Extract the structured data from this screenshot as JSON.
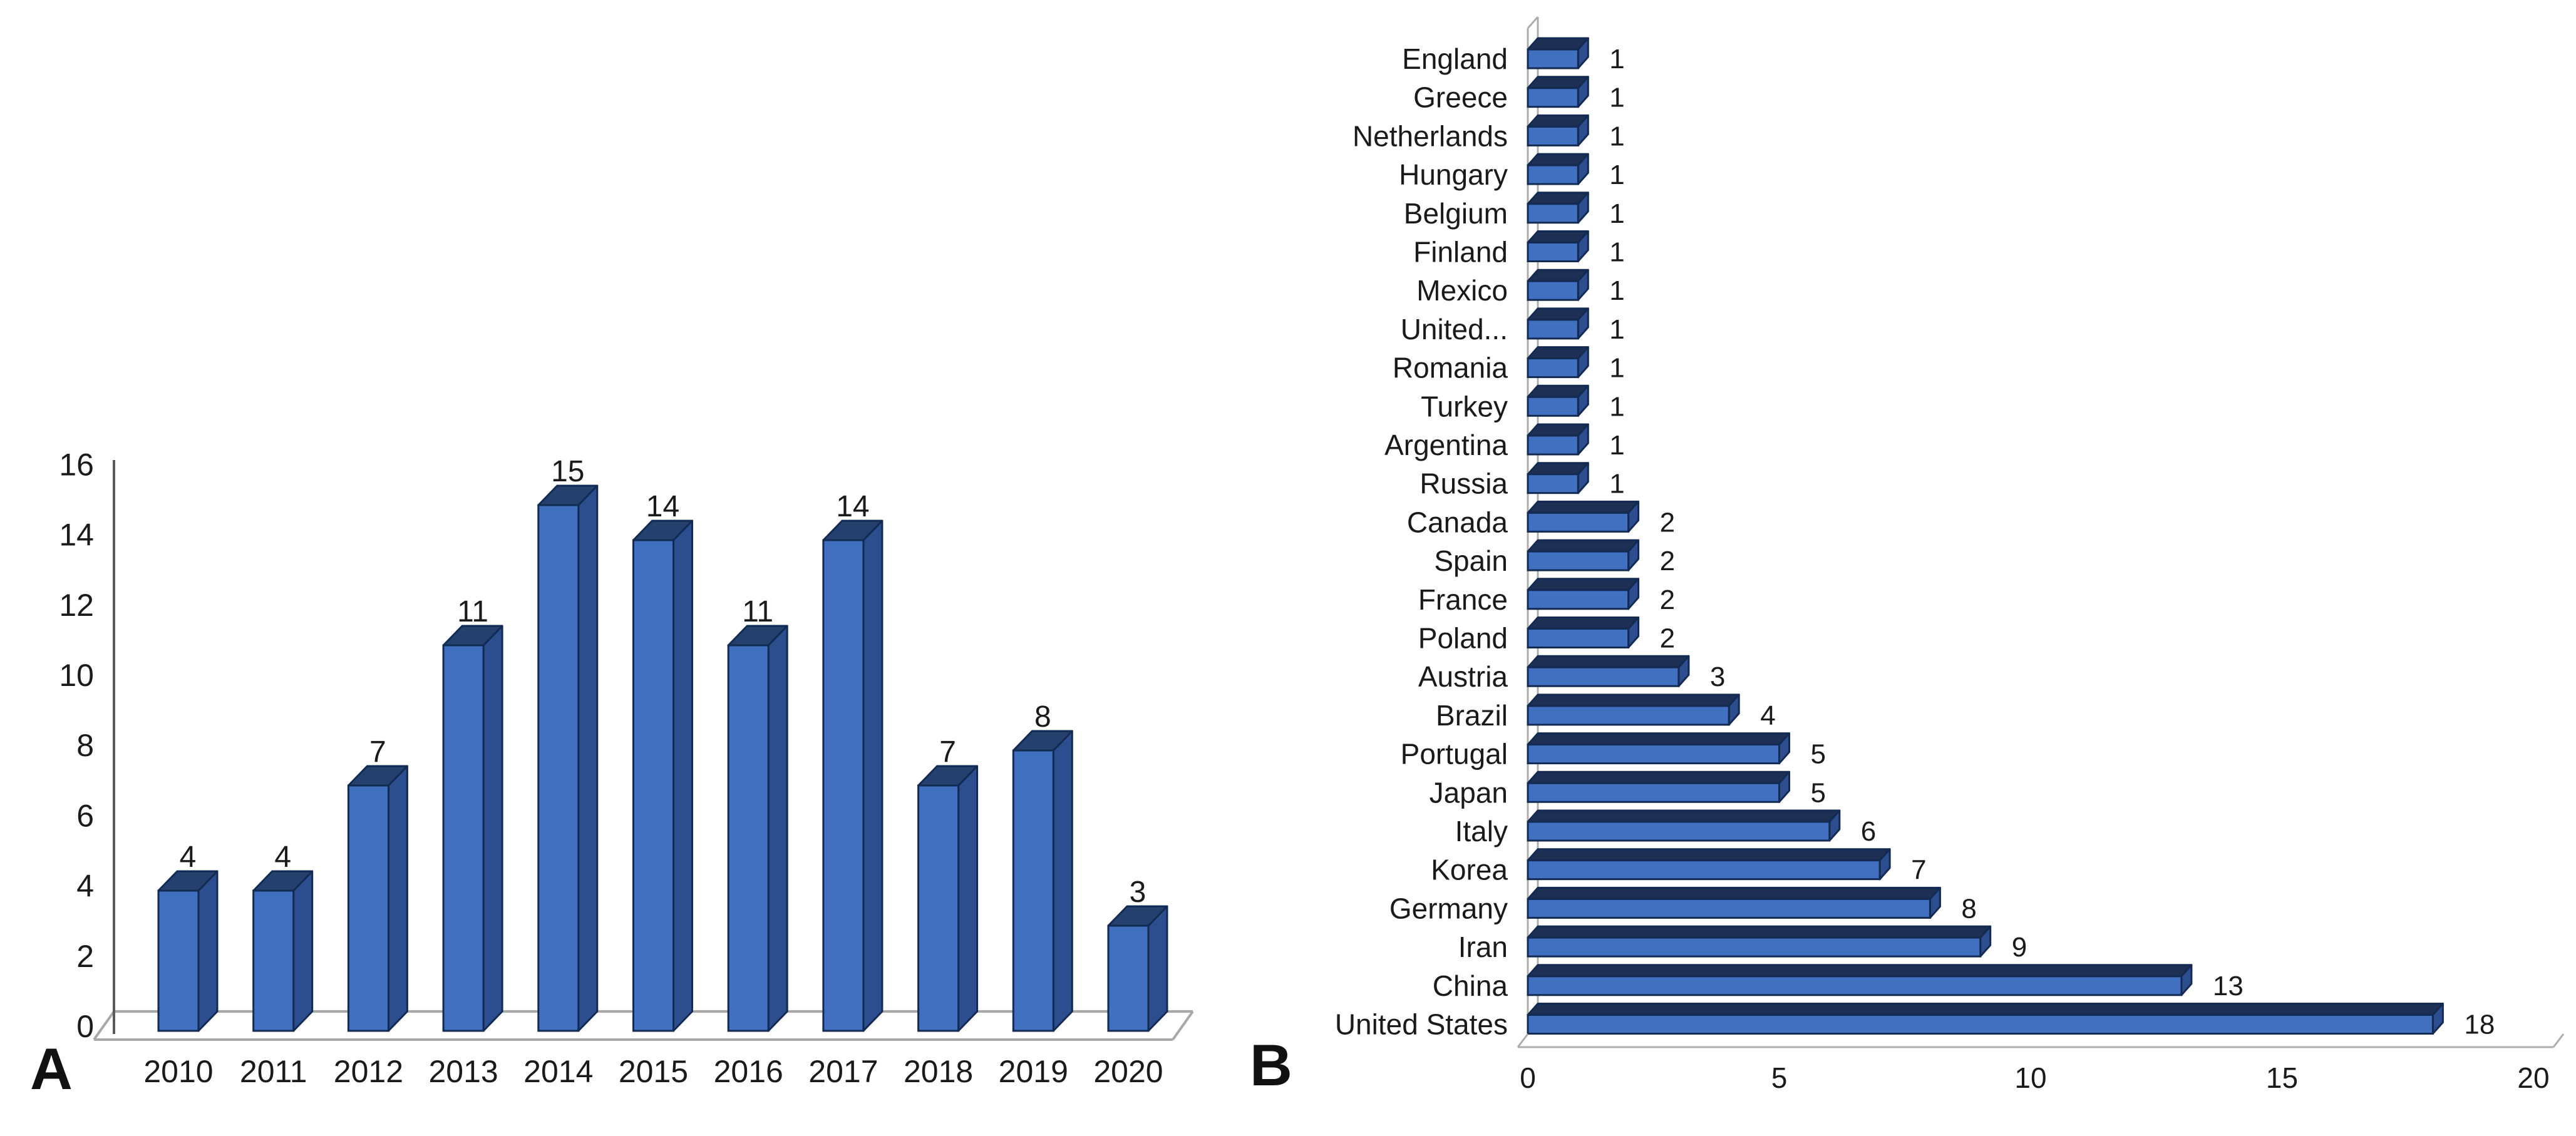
{
  "figure": {
    "background": "#FFFFFF",
    "description_visible_text_only": true
  },
  "colors": {
    "bar_front": "#4170C0",
    "bar_top_vertical": "#24406F",
    "bar_side": "#2C4E8F",
    "bar_top_horizontal": "#1D2F52",
    "bar_outline": "#132A52",
    "axis_line": "#595959",
    "floor_line": "#A8A8A8",
    "wall_line": "#ADADAD",
    "text": "#1A1A1A"
  },
  "chart_data": [
    {
      "id": "A",
      "panel_label": "A",
      "type": "bar",
      "orientation": "vertical",
      "style": "3d",
      "title": "",
      "xlabel": "",
      "ylabel": "",
      "categories": [
        "2010",
        "2011",
        "2012",
        "2013",
        "2014",
        "2015",
        "2016",
        "2017",
        "2018",
        "2019",
        "2020"
      ],
      "values": [
        4,
        4,
        7,
        11,
        15,
        14,
        11,
        14,
        7,
        8,
        3
      ],
      "data_labels": true,
      "ylim": [
        0,
        16
      ],
      "yticks": [
        0,
        2,
        4,
        6,
        8,
        10,
        12,
        14,
        16
      ],
      "grid": false,
      "legend": "none"
    },
    {
      "id": "B",
      "panel_label": "B",
      "type": "bar",
      "orientation": "horizontal",
      "style": "3d",
      "title": "",
      "xlabel": "",
      "ylabel": "",
      "categories": [
        "England",
        "Greece",
        "Netherlands",
        "Hungary",
        "Belgium",
        "Finland",
        "Mexico",
        "United...",
        "Romania",
        "Turkey",
        "Argentina",
        "Russia",
        "Canada",
        "Spain",
        "France",
        "Poland",
        "Austria",
        "Brazil",
        "Portugal",
        "Japan",
        "Italy",
        "Korea",
        "Germany",
        "Iran",
        "China",
        "United States"
      ],
      "values": [
        1,
        1,
        1,
        1,
        1,
        1,
        1,
        1,
        1,
        1,
        1,
        1,
        2,
        2,
        2,
        2,
        3,
        4,
        5,
        5,
        6,
        7,
        8,
        9,
        13,
        18
      ],
      "data_labels": true,
      "xlim": [
        0,
        20
      ],
      "xticks": [
        0,
        5,
        10,
        15,
        20
      ],
      "grid": false,
      "legend": "none"
    }
  ]
}
